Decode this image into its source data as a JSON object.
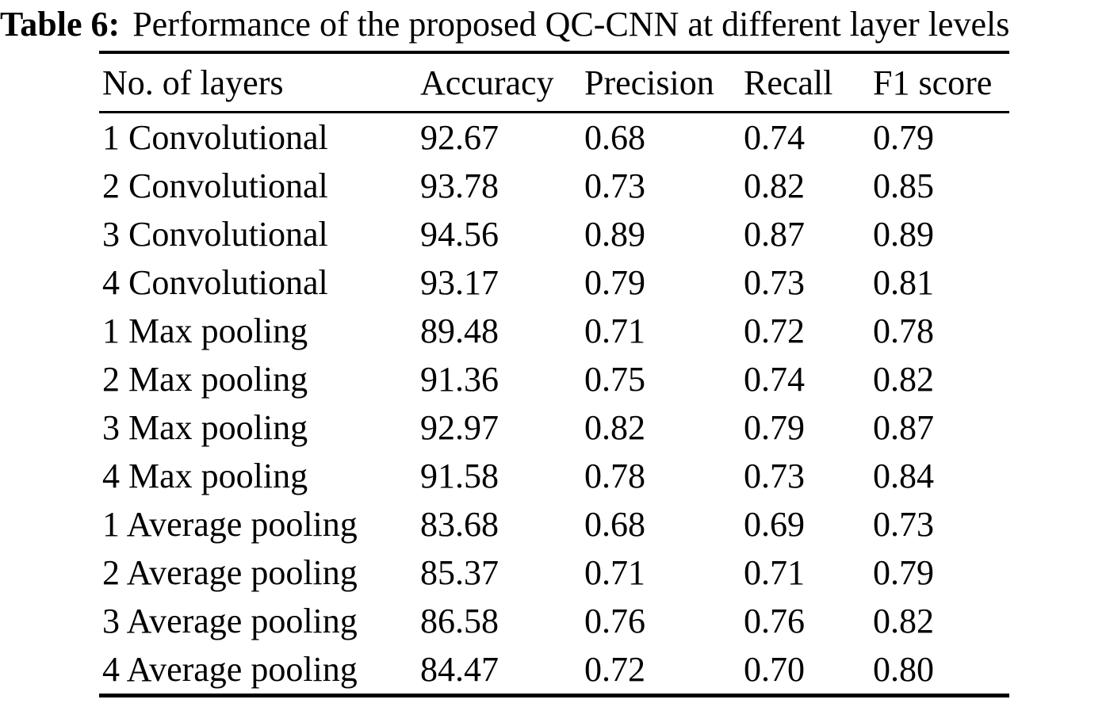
{
  "caption": {
    "label": "Table 6:",
    "text": "Performance of the proposed QC-CNN at different layer levels"
  },
  "table": {
    "columns": [
      "No. of layers",
      "Accuracy",
      "Precision",
      "Recall",
      "F1 score"
    ],
    "rows": [
      [
        "1 Convolutional",
        "92.67",
        "0.68",
        "0.74",
        "0.79"
      ],
      [
        "2 Convolutional",
        "93.78",
        "0.73",
        "0.82",
        "0.85"
      ],
      [
        "3 Convolutional",
        "94.56",
        "0.89",
        "0.87",
        "0.89"
      ],
      [
        "4 Convolutional",
        "93.17",
        "0.79",
        "0.73",
        "0.81"
      ],
      [
        "1 Max pooling",
        "89.48",
        "0.71",
        "0.72",
        "0.78"
      ],
      [
        "2 Max pooling",
        "91.36",
        "0.75",
        "0.74",
        "0.82"
      ],
      [
        "3 Max pooling",
        "92.97",
        "0.82",
        "0.79",
        "0.87"
      ],
      [
        "4 Max pooling",
        "91.58",
        "0.78",
        "0.73",
        "0.84"
      ],
      [
        "1 Average pooling",
        "83.68",
        "0.68",
        "0.69",
        "0.73"
      ],
      [
        "2 Average pooling",
        "85.37",
        "0.71",
        "0.71",
        "0.79"
      ],
      [
        "3 Average pooling",
        "86.58",
        "0.76",
        "0.76",
        "0.82"
      ],
      [
        "4 Average pooling",
        "84.47",
        "0.72",
        "0.70",
        "0.80"
      ]
    ]
  },
  "chart_data": {
    "type": "table",
    "title": "Table 6: Performance of the proposed QC-CNN at different layer levels",
    "columns": [
      "No. of layers",
      "Accuracy",
      "Precision",
      "Recall",
      "F1 score"
    ],
    "rows": [
      {
        "layers": "1 Convolutional",
        "accuracy": 92.67,
        "precision": 0.68,
        "recall": 0.74,
        "f1_score": 0.79
      },
      {
        "layers": "2 Convolutional",
        "accuracy": 93.78,
        "precision": 0.73,
        "recall": 0.82,
        "f1_score": 0.85
      },
      {
        "layers": "3 Convolutional",
        "accuracy": 94.56,
        "precision": 0.89,
        "recall": 0.87,
        "f1_score": 0.89
      },
      {
        "layers": "4 Convolutional",
        "accuracy": 93.17,
        "precision": 0.79,
        "recall": 0.73,
        "f1_score": 0.81
      },
      {
        "layers": "1 Max pooling",
        "accuracy": 89.48,
        "precision": 0.71,
        "recall": 0.72,
        "f1_score": 0.78
      },
      {
        "layers": "2 Max pooling",
        "accuracy": 91.36,
        "precision": 0.75,
        "recall": 0.74,
        "f1_score": 0.82
      },
      {
        "layers": "3 Max pooling",
        "accuracy": 92.97,
        "precision": 0.82,
        "recall": 0.79,
        "f1_score": 0.87
      },
      {
        "layers": "4 Max pooling",
        "accuracy": 91.58,
        "precision": 0.78,
        "recall": 0.73,
        "f1_score": 0.84
      },
      {
        "layers": "1 Average pooling",
        "accuracy": 83.68,
        "precision": 0.68,
        "recall": 0.69,
        "f1_score": 0.73
      },
      {
        "layers": "2 Average pooling",
        "accuracy": 85.37,
        "precision": 0.71,
        "recall": 0.71,
        "f1_score": 0.79
      },
      {
        "layers": "3 Average pooling",
        "accuracy": 86.58,
        "precision": 0.76,
        "recall": 0.76,
        "f1_score": 0.82
      },
      {
        "layers": "4 Average pooling",
        "accuracy": 84.47,
        "precision": 0.72,
        "recall": 0.7,
        "f1_score": 0.8
      }
    ]
  },
  "colors": {
    "background": "#ffffff",
    "text": "#000000",
    "rule": "#000000"
  }
}
